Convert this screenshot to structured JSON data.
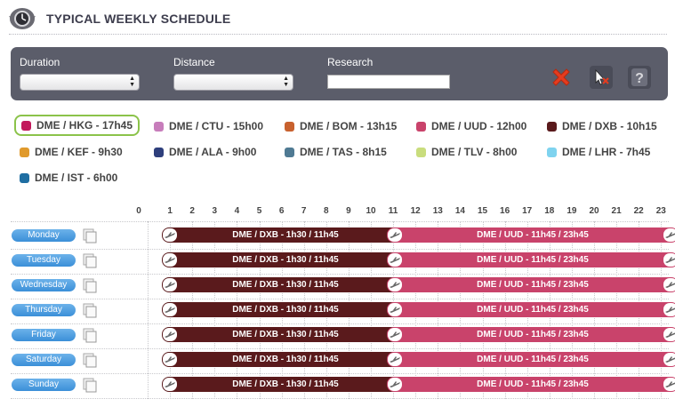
{
  "header": {
    "title": "TYPICAL WEEKLY SCHEDULE",
    "icon": "clock-icon"
  },
  "filters": {
    "duration_label": "Duration",
    "distance_label": "Distance",
    "research_label": "Research",
    "duration_value": "",
    "distance_value": "",
    "research_value": "",
    "buttons": {
      "delete": "red-x-icon",
      "clear": "cursor-x-icon",
      "help": "?"
    }
  },
  "routes": [
    {
      "label": "DME / HKG - 17h45",
      "color": "#c2185b",
      "active": true
    },
    {
      "label": "DME / CTU - 15h00",
      "color": "#c77dbb"
    },
    {
      "label": "DME / BOM - 13h15",
      "color": "#c8612e"
    },
    {
      "label": "DME / UUD - 12h00",
      "color": "#c9436b"
    },
    {
      "label": "DME / DXB - 10h15",
      "color": "#5a1a1c"
    },
    {
      "label": "DME / KEF - 9h30",
      "color": "#e09a2c"
    },
    {
      "label": "DME / ALA - 9h00",
      "color": "#2e3f7c"
    },
    {
      "label": "DME / TAS - 8h15",
      "color": "#4f7a93"
    },
    {
      "label": "DME / TLV - 8h00",
      "color": "#c9dd7d"
    },
    {
      "label": "DME / LHR - 7h45",
      "color": "#7fd3ef"
    },
    {
      "label": "DME / IST - 6h00",
      "color": "#1f6ea2"
    }
  ],
  "hours": [
    "0",
    "1",
    "2",
    "3",
    "4",
    "5",
    "6",
    "7",
    "8",
    "9",
    "10",
    "11",
    "12",
    "13",
    "14",
    "15",
    "16",
    "17",
    "18",
    "19",
    "20",
    "21",
    "22",
    "23"
  ],
  "days": [
    "Monday",
    "Tuesday",
    "Wednesday",
    "Thursday",
    "Friday",
    "Saturday",
    "Sunday"
  ],
  "schedule": {
    "flight_a": {
      "label": "DME / DXB - 1h30 / 11h45",
      "start": 1,
      "end": 11,
      "color": "#5a1a1c"
    },
    "flight_b": {
      "label": "DME / UUD - 11h45 / 23h45",
      "start": 11,
      "end": 23,
      "color": "#c9436b"
    }
  }
}
